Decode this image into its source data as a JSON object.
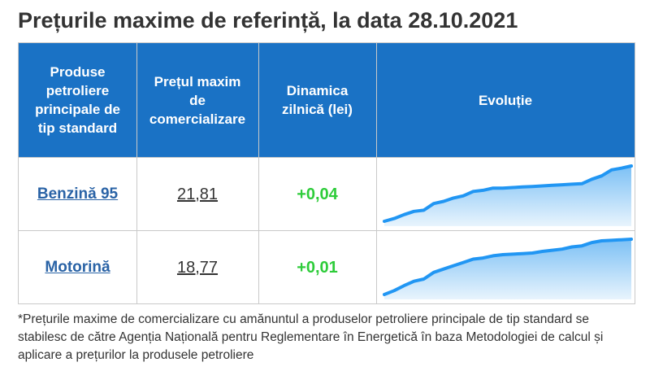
{
  "page": {
    "title": "Prețurile maxime de referință, la data 28.10.2021"
  },
  "table": {
    "headers": [
      "Produse petroliere principale de tip standard",
      "Prețul maxim de comercializare",
      "Dinamica zilnică (lei)",
      "Evoluție"
    ]
  },
  "colors": {
    "header_bg": "#1a72c5",
    "link": "#2a63a6",
    "positive": "#2ecc3a",
    "line": "#2196f3",
    "fill_top": "#7cc0f5",
    "fill_bottom": "#e8f4fd"
  },
  "chart_data": [
    {
      "type": "area",
      "name": "Benzină 95",
      "price": "21,81",
      "change": "+0,04",
      "values": [
        0.0,
        0.05,
        0.12,
        0.18,
        0.2,
        0.32,
        0.36,
        0.42,
        0.46,
        0.54,
        0.56,
        0.6,
        0.6,
        0.61,
        0.62,
        0.63,
        0.64,
        0.65,
        0.66,
        0.67,
        0.68,
        0.76,
        0.82,
        0.93,
        0.96,
        1.0
      ]
    },
    {
      "type": "area",
      "name": "Motorină",
      "price": "18,77",
      "change": "+0,01",
      "values": [
        0.0,
        0.07,
        0.16,
        0.24,
        0.28,
        0.4,
        0.46,
        0.52,
        0.58,
        0.64,
        0.66,
        0.7,
        0.72,
        0.73,
        0.74,
        0.75,
        0.78,
        0.8,
        0.82,
        0.86,
        0.88,
        0.94,
        0.97,
        0.98,
        0.99,
        1.0
      ]
    }
  ],
  "footnote": "*Prețurile maxime de comercializare cu amănuntul a produselor petroliere principale de tip standard se stabilesc de către Agenția Națională pentru Reglementare în Energetică în baza Metodologiei de calcul și aplicare a prețurilor la produsele petroliere"
}
